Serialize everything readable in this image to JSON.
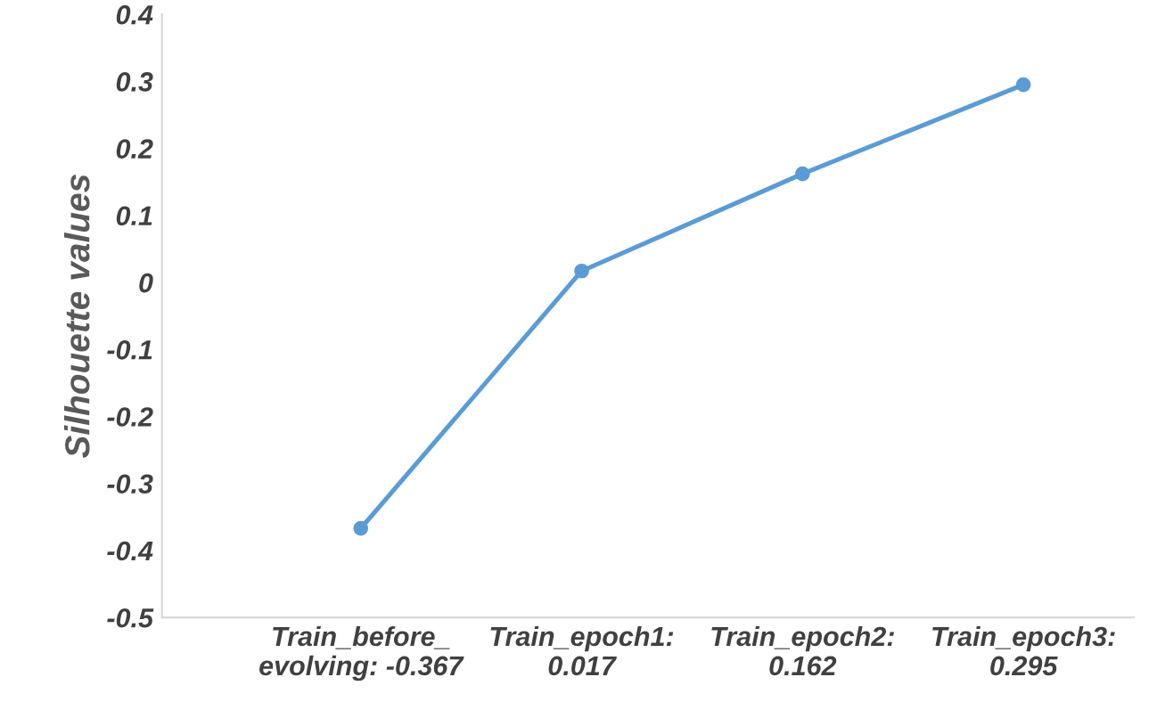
{
  "chart_data": {
    "type": "line",
    "ylabel": "Silhouette values",
    "categories": [
      "Train_before_\nevolving: -0.367",
      "Train_epoch1:\n0.017",
      "Train_epoch2:\n0.162",
      "Train_epoch3:\n0.295"
    ],
    "series": [
      {
        "color": "#5b9bd5",
        "values": [
          -0.367,
          0.017,
          0.162,
          0.295
        ]
      }
    ],
    "ylim": [
      -0.5,
      0.4
    ],
    "yticks": [
      -0.5,
      -0.4,
      -0.3,
      -0.2,
      -0.1,
      0,
      0.1,
      0.2,
      0.3,
      0.4
    ],
    "grid": false,
    "marker": "circle",
    "line_style": "solid"
  }
}
